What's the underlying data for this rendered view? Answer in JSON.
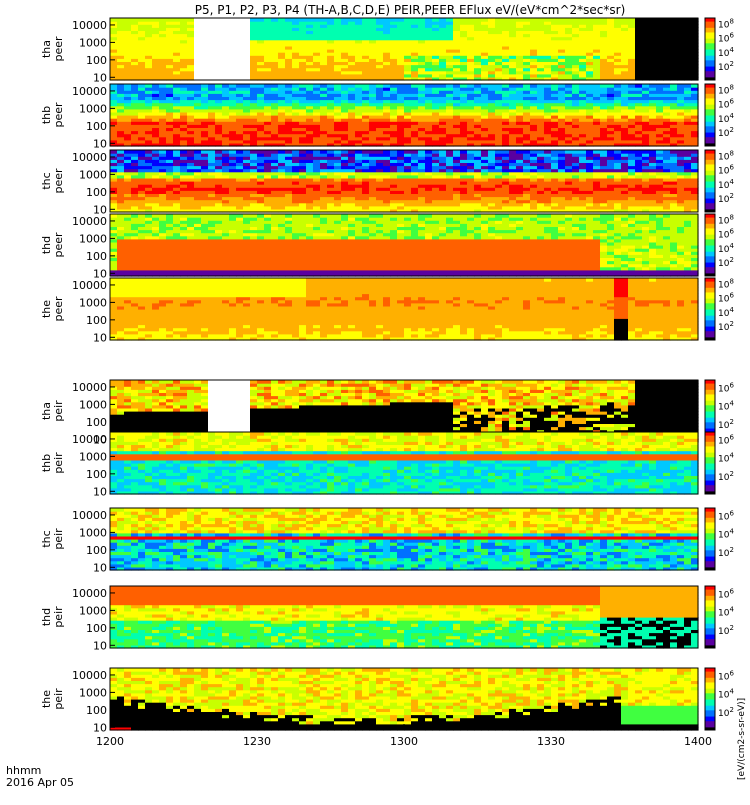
{
  "title": "P5, P1, P2, P3, P4 (TH-A,B,C,D,E) PEIR,PEER EFlux eV/(eV*cm^2*sec*sr)",
  "x_axis": {
    "label_line1": "hhmm",
    "label_line2": "2016 Apr 05",
    "ticks": [
      "1200",
      "1230",
      "1300",
      "1330",
      "1400"
    ]
  },
  "colorbar_label": "[eV/(cm2-s-sr-eV)]",
  "chart_data": {
    "type": "heatmap",
    "title": "P5, P1, P2, P3, P4 (TH-A,B,C,D,E) PEIR,PEER EFlux eV/(eV*cm^2*sec*sr)",
    "x_range_minutes": [
      0,
      120
    ],
    "x_ticks": [
      "1200",
      "1230",
      "1300",
      "1330",
      "1400"
    ],
    "y_scale": "log",
    "y_range_eV": [
      7,
      25000
    ],
    "y_ticks": [
      "10",
      "100",
      "1000",
      "10000"
    ],
    "panels": [
      {
        "probe": "tha",
        "species": "peer",
        "label": "tha\npeer",
        "cb_ticks": [
          "10^2",
          "10^4",
          "10^6",
          "10^8"
        ],
        "pattern": "tha_peer"
      },
      {
        "probe": "thb",
        "species": "peer",
        "label": "thb\npeer",
        "cb_ticks": [
          "10^2",
          "10^4",
          "10^6",
          "10^8"
        ],
        "pattern": "thb_peer"
      },
      {
        "probe": "thc",
        "species": "peer",
        "label": "thc\npeer",
        "cb_ticks": [
          "10^2",
          "10^4",
          "10^6",
          "10^8"
        ],
        "pattern": "thc_peer"
      },
      {
        "probe": "thd",
        "species": "peer",
        "label": "thd\npeer",
        "cb_ticks": [
          "10^2",
          "10^4",
          "10^6",
          "10^8"
        ],
        "pattern": "thd_peer"
      },
      {
        "probe": "the",
        "species": "peer",
        "label": "the\npeer",
        "cb_ticks": [
          "10^2",
          "10^4",
          "10^6",
          "10^8"
        ],
        "pattern": "the_peer"
      },
      {
        "probe": "tha",
        "species": "peir",
        "label": "tha\npeir",
        "cb_ticks": [
          "10^2",
          "10^4",
          "10^6"
        ],
        "pattern": "tha_peir"
      },
      {
        "probe": "thb",
        "species": "peir",
        "label": "thb\npeir",
        "cb_ticks": [
          "10^2",
          "10^4",
          "10^6"
        ],
        "pattern": "thb_peir"
      },
      {
        "probe": "thc",
        "species": "peir",
        "label": "thc\npeir",
        "cb_ticks": [
          "10^2",
          "10^4",
          "10^6"
        ],
        "pattern": "thc_peir"
      },
      {
        "probe": "thd",
        "species": "peir",
        "label": "thd\npeir",
        "cb_ticks": [
          "10^2",
          "10^4",
          "10^6"
        ],
        "pattern": "thd_peir"
      },
      {
        "probe": "the",
        "species": "peir",
        "label": "the\npeir",
        "cb_ticks": [
          "10^2",
          "10^4",
          "10^6"
        ],
        "pattern": "the_peir"
      }
    ],
    "colormap": [
      "#000000",
      "#5a00a0",
      "#0000ff",
      "#0070ff",
      "#00c8ff",
      "#00ffb0",
      "#40ff40",
      "#c8ff00",
      "#ffff00",
      "#ffb000",
      "#ff6000",
      "#ff0000"
    ]
  }
}
